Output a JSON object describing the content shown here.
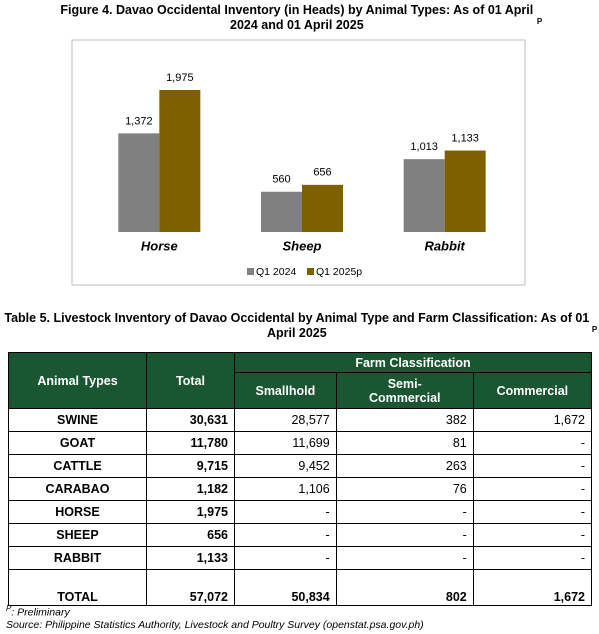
{
  "chart_data": {
    "type": "bar",
    "title": "Figure 4. Davao Occidental Inventory (in Heads) by Animal Types: As of 01 April 2024 and 01 April 2025",
    "title_superscript": "P",
    "categories": [
      "Horse",
      "Sheep",
      "Rabbit"
    ],
    "series": [
      {
        "name": "Q1 2024",
        "color": "#808080",
        "values": [
          1372,
          560,
          1013
        ],
        "value_labels": [
          "1,372",
          "560",
          "1,013"
        ]
      },
      {
        "name": "Q1 2025p",
        "color": "#7f6000",
        "values": [
          1975,
          656,
          1133
        ],
        "value_labels": [
          "1,975",
          "656",
          "1,133"
        ]
      }
    ],
    "legend": "bottom"
  },
  "table": {
    "title": "Table 5. Livestock Inventory of Davao Occidental by Animal Type and Farm Classification: As of 01 April 2025",
    "title_superscript": "P",
    "header": {
      "animal_types": "Animal Types",
      "total": "Total",
      "group": "Farm Classification",
      "columns": [
        "Smallhold",
        "Semi-Commercial",
        "Commercial"
      ]
    },
    "rows": [
      [
        "SWINE",
        "30,631",
        "28,577",
        "382",
        "1,672"
      ],
      [
        "GOAT",
        "11,780",
        "11,699",
        "81",
        "-"
      ],
      [
        "CATTLE",
        "9,715",
        "9,452",
        "263",
        "-"
      ],
      [
        "CARABAO",
        "1,182",
        "1,106",
        "76",
        "-"
      ],
      [
        "HORSE",
        "1,975",
        "-",
        "-",
        "-"
      ],
      [
        "SHEEP",
        "656",
        "-",
        "-",
        "-"
      ],
      [
        "RABBIT",
        "1,133",
        "-",
        "-",
        "-"
      ],
      [
        "TOTAL",
        "57,072",
        "50,834",
        "802",
        "1,672"
      ]
    ]
  },
  "footnotes": {
    "preliminary_mark": "P",
    "preliminary_text": ": Preliminary",
    "source": "Source: Philippine Statistics Authority, Livestock and Poultry Survey (openstat.psa.gov.ph)"
  }
}
